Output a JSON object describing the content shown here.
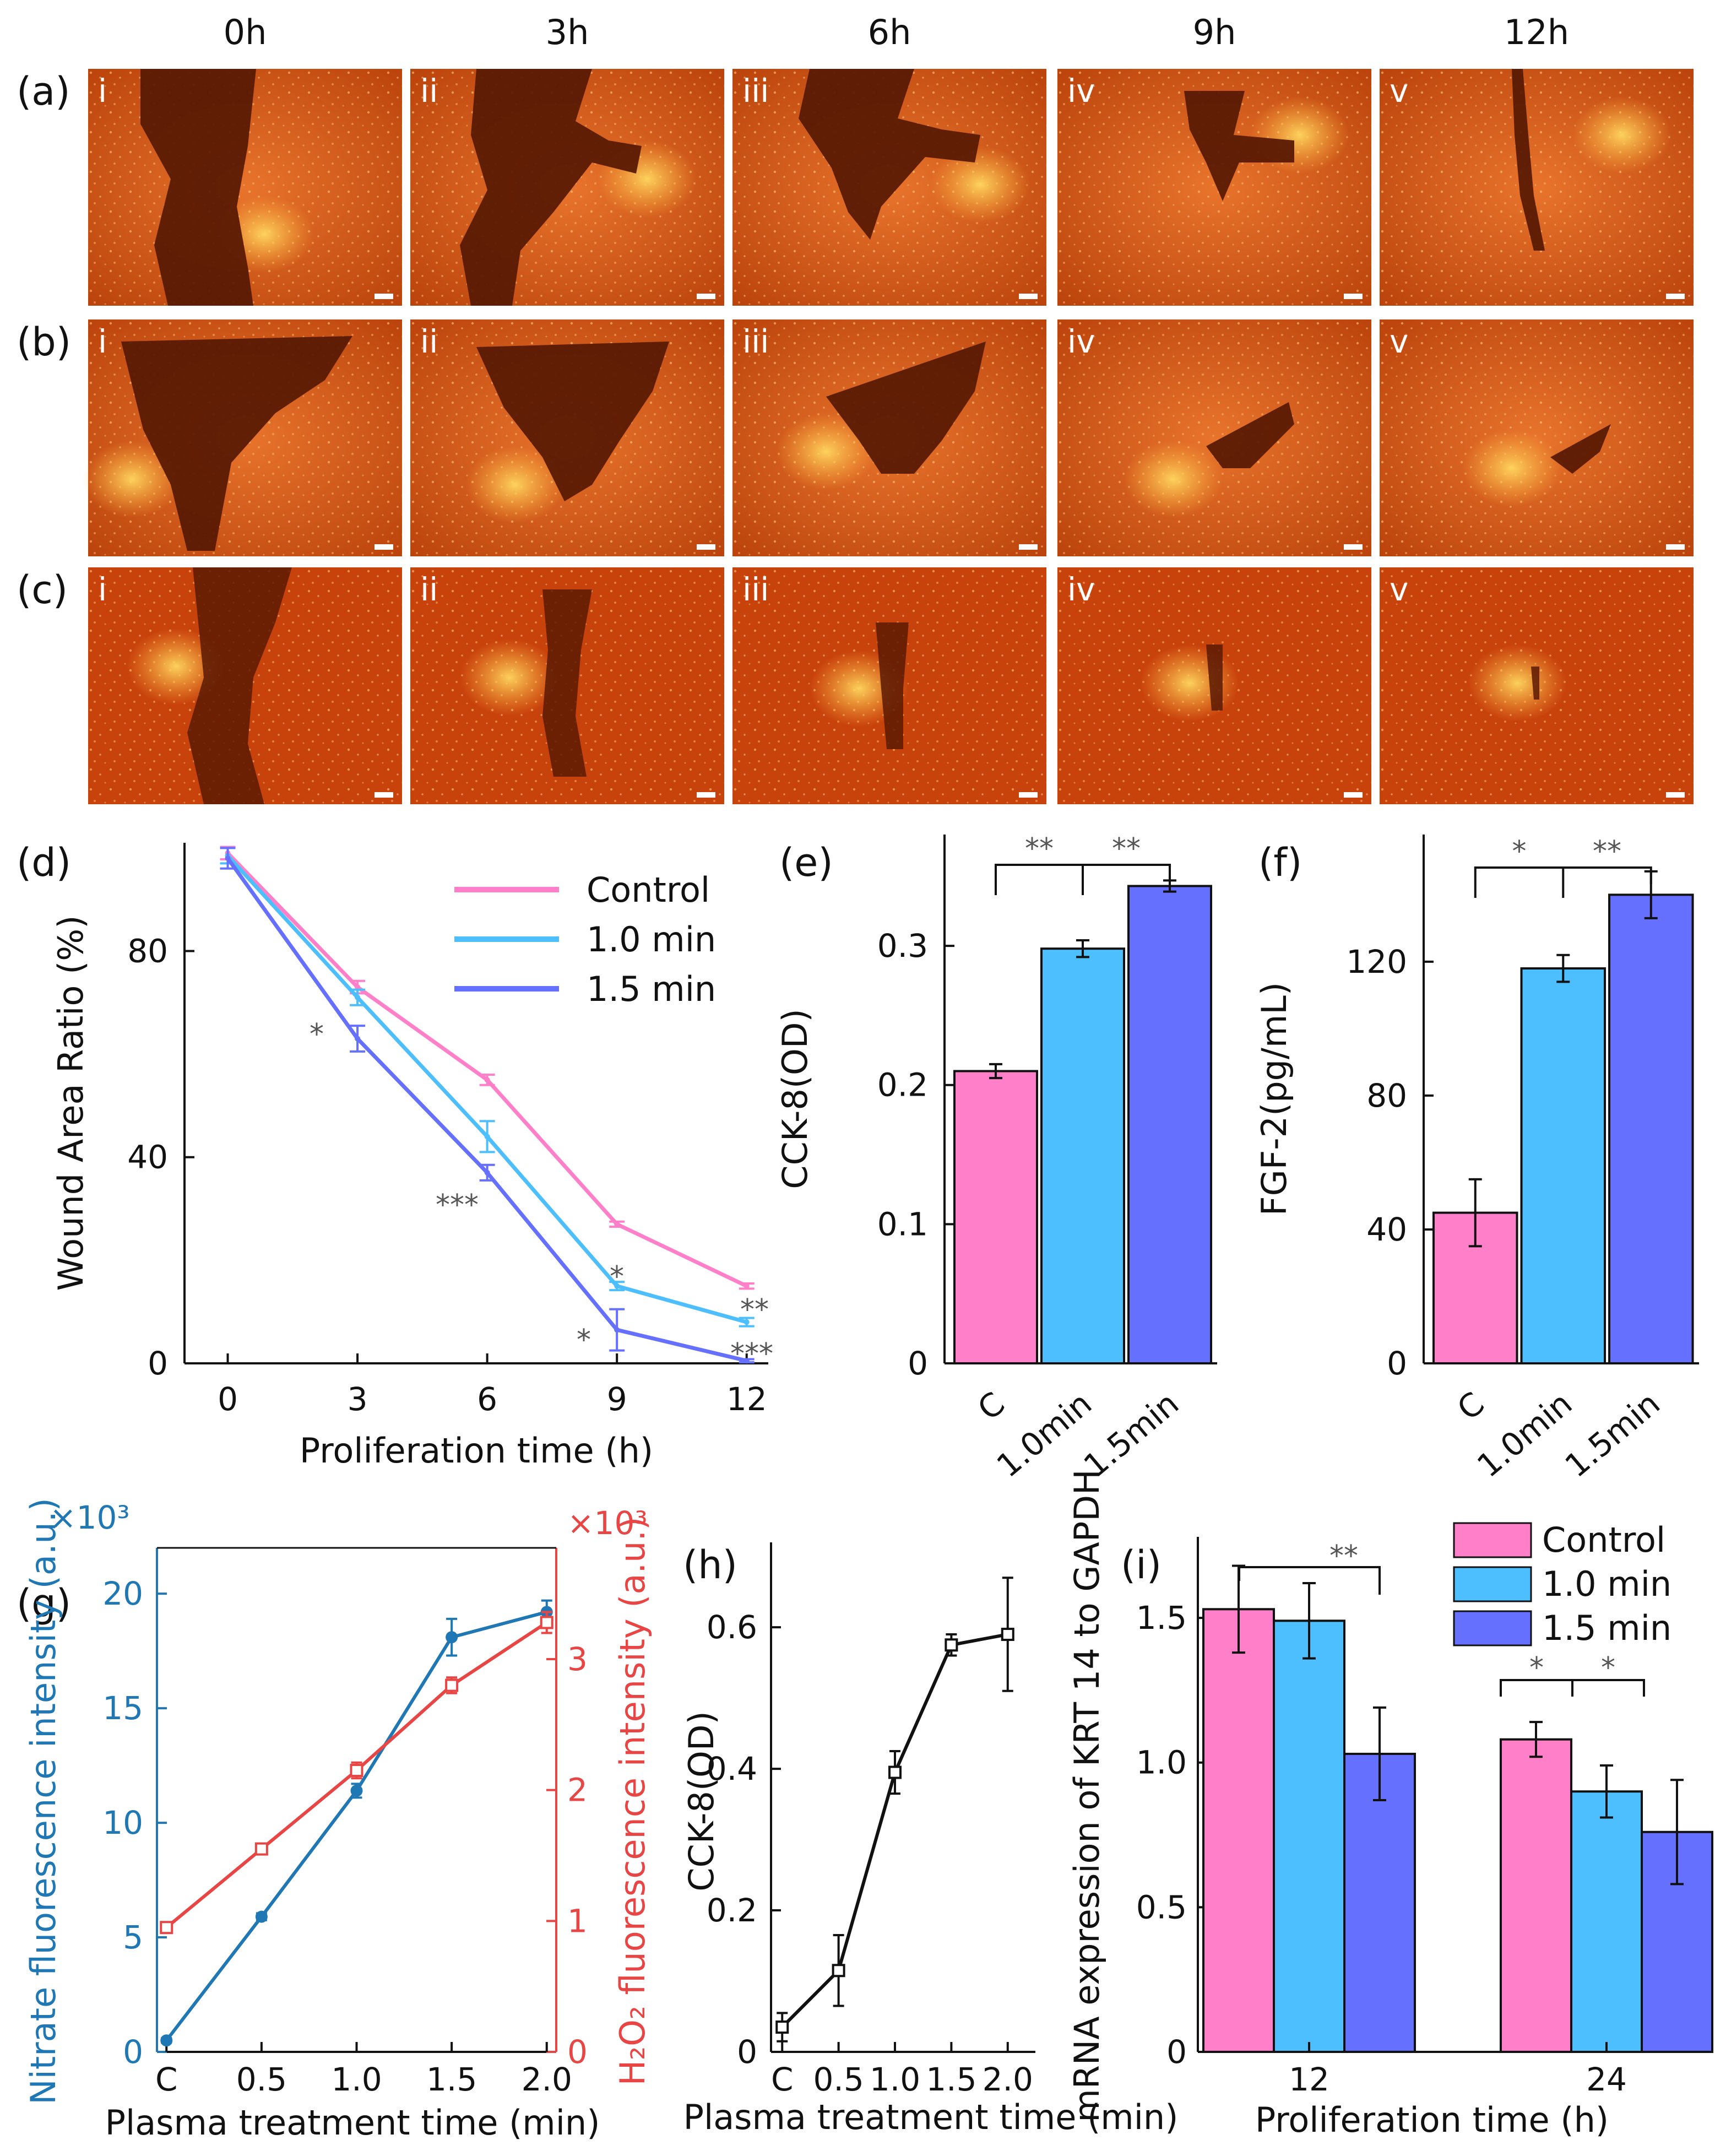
{
  "headers": [
    "0h",
    "3h",
    "6h",
    "9h",
    "12h"
  ],
  "row_labels": [
    "(a)",
    "(b)",
    "(c)"
  ],
  "roman": [
    "i",
    "ii",
    "iii",
    "iv",
    "v"
  ],
  "colors": {
    "control": "#ff80c8",
    "one": "#4dbfff",
    "onefive": "#6670ff",
    "nitrate": "#1f77b4",
    "h2o2": "#e84545",
    "black": "#111111"
  },
  "chart_data": [
    {
      "id": "d",
      "label": "(d)",
      "type": "line",
      "xlabel": "Proliferation time (h)",
      "ylabel": "Wound Area Ratio (%)",
      "x": [
        0,
        3,
        6,
        9,
        12
      ],
      "xticks": [
        "0",
        "3",
        "6",
        "9",
        "12"
      ],
      "xlim": [
        -1,
        12.5
      ],
      "ylim": [
        0,
        101
      ],
      "yticks": [
        "0",
        "40",
        "80"
      ],
      "series": [
        {
          "name": "Control",
          "color": "#ff80c8",
          "values": [
            99,
            73,
            55,
            27,
            15
          ],
          "err": [
            1.2,
            1.2,
            1,
            0.5,
            0.5
          ]
        },
        {
          "name": "1.0 min",
          "color": "#4dbfff",
          "values": [
            98.5,
            71,
            44,
            15,
            8
          ],
          "err": [
            1.5,
            1.5,
            3,
            0.8,
            0.8
          ]
        },
        {
          "name": "1.5 min",
          "color": "#6670ff",
          "values": [
            98,
            63,
            37,
            6.5,
            0.5
          ],
          "err": [
            2,
            2.5,
            1.5,
            4,
            0.3
          ]
        }
      ],
      "annotations": [
        "*",
        "***",
        "*",
        "*",
        "**",
        "***"
      ]
    },
    {
      "id": "e",
      "label": "(e)",
      "type": "bar",
      "ylabel": "CCK-8(OD)",
      "categories": [
        "C",
        "1.0min",
        "1.5min"
      ],
      "values": [
        0.21,
        0.298,
        0.343
      ],
      "err": [
        0.005,
        0.006,
        0.004
      ],
      "ylim": [
        0,
        0.38
      ],
      "yticks": [
        "0",
        "0.1",
        "0.2",
        "0.3"
      ],
      "annotations": [
        "**",
        "**"
      ]
    },
    {
      "id": "f",
      "label": "(f)",
      "type": "bar",
      "ylabel": "FGF-2(pg/mL)",
      "categories": [
        "C",
        "1.0min",
        "1.5min"
      ],
      "values": [
        45,
        118,
        140
      ],
      "err": [
        10,
        4,
        7
      ],
      "ylim": [
        0,
        158
      ],
      "yticks": [
        "0",
        "40",
        "80",
        "120"
      ],
      "annotations": [
        "*",
        "**"
      ]
    },
    {
      "id": "g",
      "label": "(g)",
      "type": "line",
      "xlabel": "Plasma treatment time (min)",
      "ylabel_left": "Nitrate fluorescence intensity (a.u.)",
      "ylabel_right": "H₂O₂ fluorescence intensity (a.u.)",
      "x": [
        0,
        0.5,
        1.0,
        1.5,
        2.0
      ],
      "xticks": [
        "C",
        "0.5",
        "1.0",
        "1.5",
        "2.0"
      ],
      "left_scale": "×10³",
      "right_scale": "×10³",
      "ylim_left": [
        0,
        22
      ],
      "yticks_left": [
        "0",
        "5",
        "10",
        "15",
        "20"
      ],
      "ylim_right": [
        0,
        3.85
      ],
      "yticks_right": [
        "0",
        "1",
        "2",
        "3"
      ],
      "series": [
        {
          "name": "Nitrate",
          "axis": "left",
          "color": "#1f77b4",
          "values": [
            0.5,
            5.9,
            11.4,
            18.1,
            19.2
          ],
          "err": [
            0.1,
            0.15,
            0.3,
            0.8,
            0.5
          ]
        },
        {
          "name": "H₂O₂",
          "axis": "right",
          "color": "#e84545",
          "values": [
            0.95,
            1.55,
            2.15,
            2.8,
            3.28
          ],
          "err": [
            0.03,
            0.03,
            0.06,
            0.06,
            0.08
          ]
        }
      ]
    },
    {
      "id": "h",
      "label": "(h)",
      "type": "line",
      "xlabel": "Plasma treatment time (min)",
      "ylabel": "CCK-8(OD)",
      "x": [
        0,
        0.5,
        1.0,
        1.5,
        2.0
      ],
      "xticks": [
        "C",
        "0.5",
        "1.0",
        "1.5",
        "2.0"
      ],
      "ylim": [
        0,
        0.72
      ],
      "yticks": [
        "0",
        "0.2",
        "0.4",
        "0.6"
      ],
      "series": [
        {
          "name": "CCK-8",
          "color": "#111111",
          "values": [
            0.035,
            0.115,
            0.395,
            0.575,
            0.59
          ],
          "err": [
            0.02,
            0.05,
            0.03,
            0.015,
            0.08
          ]
        }
      ]
    },
    {
      "id": "i",
      "label": "(i)",
      "type": "bar",
      "xlabel": "Proliferation time (h)",
      "ylabel": "mRNA expression of KRT 14 to GAPDH",
      "categories": [
        "12",
        "24"
      ],
      "ylim": [
        0,
        1.78
      ],
      "yticks": [
        "0",
        "0.5",
        "1.0",
        "1.5"
      ],
      "series": [
        {
          "name": "Control",
          "color": "#ff80c8",
          "values": [
            1.53,
            1.08
          ],
          "err": [
            0.15,
            0.06
          ]
        },
        {
          "name": "1.0 min",
          "color": "#4dbfff",
          "values": [
            1.49,
            0.9
          ],
          "err": [
            0.13,
            0.09
          ]
        },
        {
          "name": "1.5 min",
          "color": "#6670ff",
          "values": [
            1.03,
            0.76
          ],
          "err": [
            0.16,
            0.18
          ]
        }
      ],
      "annotations": [
        "**",
        "*",
        "*"
      ]
    }
  ]
}
